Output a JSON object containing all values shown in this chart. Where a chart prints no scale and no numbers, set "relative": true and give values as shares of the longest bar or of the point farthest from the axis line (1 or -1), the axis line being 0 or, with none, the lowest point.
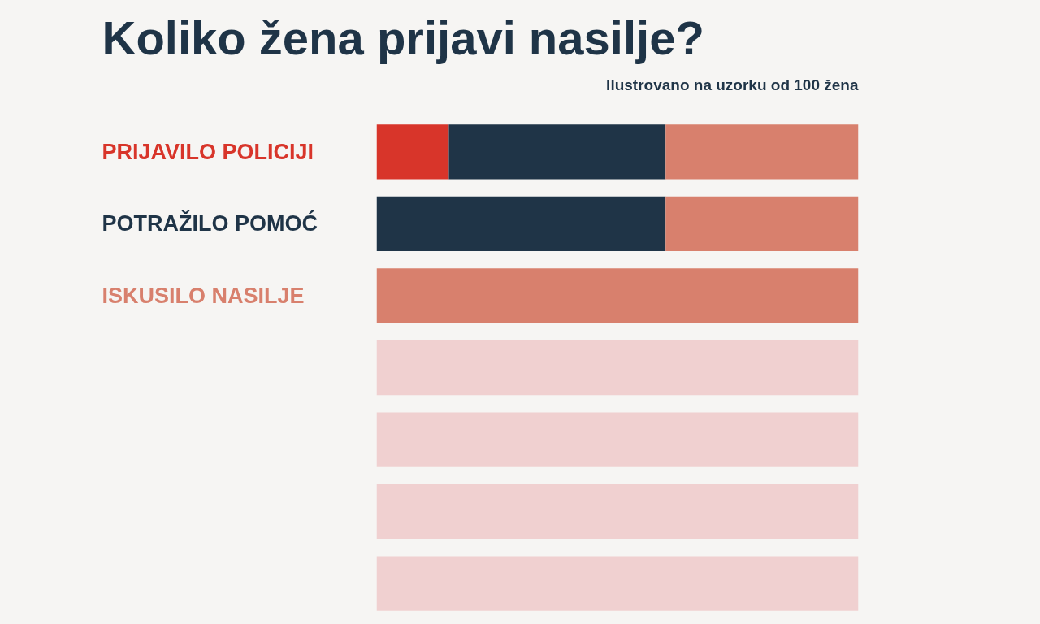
{
  "chart_data": {
    "type": "bar",
    "title": "Koliko žena prijavi nasilje?",
    "subtitle": "Ilustrovano na uzorku od 100 žena",
    "orientation": "horizontal",
    "stacked": true,
    "relative": true,
    "categories": [
      "PRIJAVILO POLICIJI",
      "POTRAŽILO POMOĆ",
      "ISKUSILO NASILJE",
      null,
      null,
      null,
      null
    ],
    "series": [
      {
        "color": "#d8352a",
        "values": [
          0.15,
          null,
          null,
          null,
          null,
          null,
          null
        ]
      },
      {
        "color": "#1f3447",
        "values": [
          0.45,
          0.6,
          null,
          null,
          null,
          null,
          null
        ]
      },
      {
        "color": "#d8806d",
        "values": [
          0.4,
          0.4,
          1.0,
          null,
          null,
          null,
          null
        ]
      },
      {
        "color": "#f0d0d0",
        "values": [
          null,
          null,
          null,
          1.0,
          1.0,
          1.0,
          1.0
        ]
      }
    ]
  }
}
